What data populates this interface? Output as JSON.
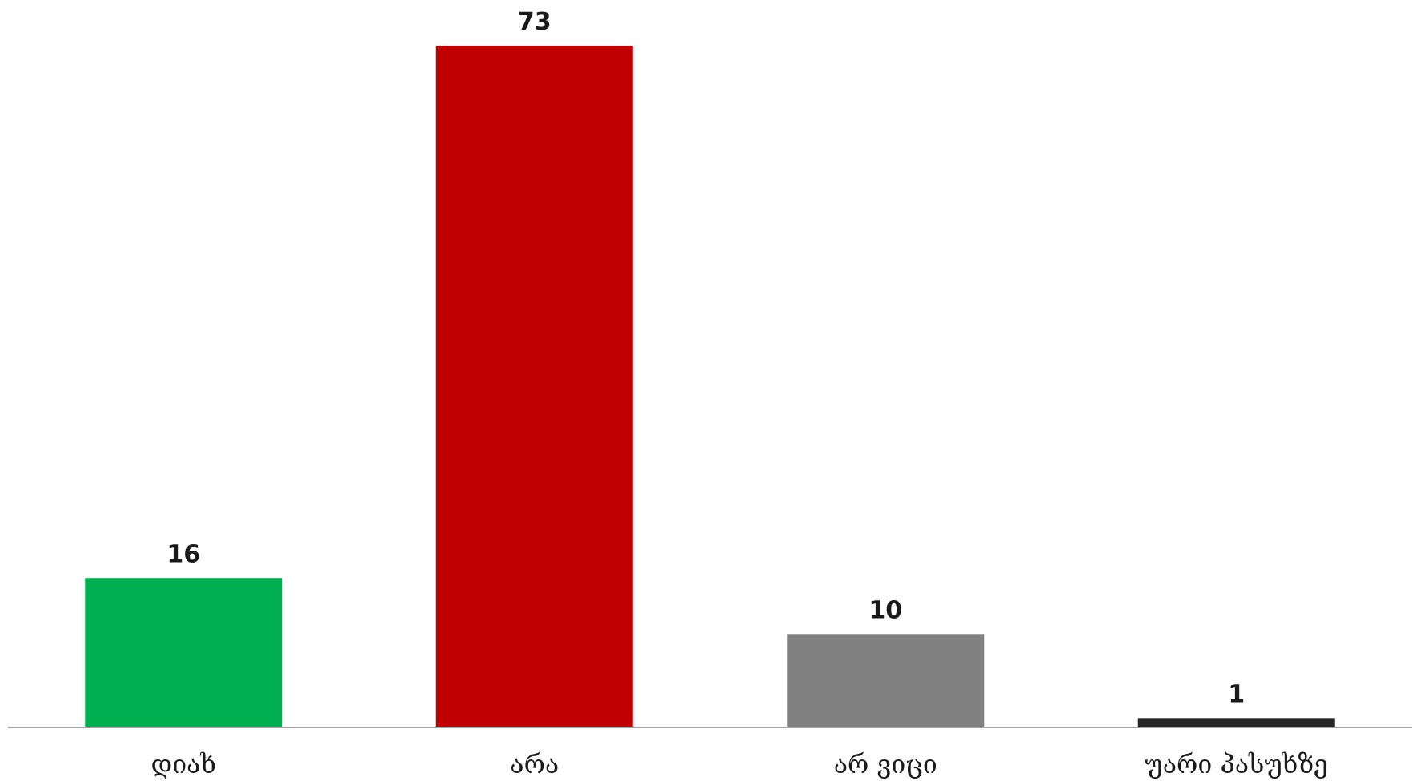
{
  "chart_data": {
    "type": "bar",
    "categories": [
      "დიახ",
      "არა",
      "არ ვიცი",
      "უარი პასუხზე"
    ],
    "values": [
      16,
      73,
      10,
      1
    ],
    "colors": [
      "#00b050",
      "#c00000",
      "#808080",
      "#262626"
    ],
    "data_labels": [
      "16",
      "73",
      "10",
      "1"
    ],
    "title": "",
    "xlabel": "",
    "ylabel": "",
    "ylim": [
      0,
      73
    ],
    "grid": false,
    "legend": "none"
  }
}
